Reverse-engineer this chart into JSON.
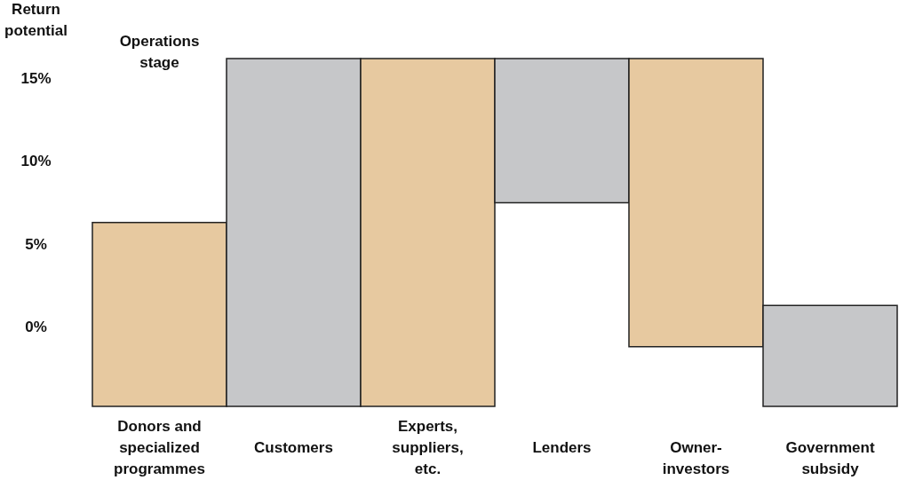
{
  "chart_data": {
    "type": "bar",
    "title": "Operations stage",
    "ylabel": "Return potential",
    "categories": [
      "Donors and specialized programmes",
      "Customers",
      "Experts, suppliers, etc.",
      "Lenders",
      "Owner-investors",
      "Government subsidy"
    ],
    "base": [
      -4.8,
      -4.8,
      -4.8,
      7.5,
      -1.2,
      -4.8
    ],
    "values": [
      11.1,
      21.0,
      21.0,
      8.7,
      17.4,
      6.1
    ],
    "colors": [
      "#e7c9a0",
      "#c6c7c9",
      "#e7c9a0",
      "#c6c7c9",
      "#e7c9a0",
      "#c6c7c9"
    ],
    "ylim": [
      -4.8,
      16.2
    ],
    "yticks": [
      {
        "value": 0,
        "label": "0%"
      },
      {
        "value": 5,
        "label": "5%"
      },
      {
        "value": 10,
        "label": "10%"
      },
      {
        "value": 15,
        "label": "15%"
      }
    ]
  }
}
